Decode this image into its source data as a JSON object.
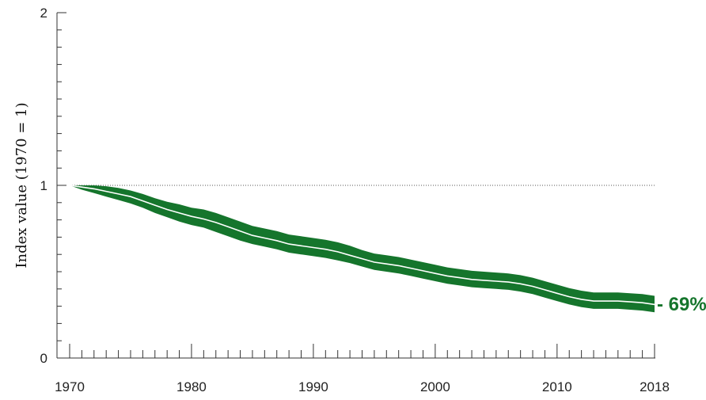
{
  "chart_data": {
    "type": "area",
    "title": "",
    "xlabel": "",
    "ylabel": "Index value (1970 = 1)",
    "xlim": [
      1970,
      2018
    ],
    "ylim": [
      0,
      2
    ],
    "x_tick_labels": [
      "1970",
      "1980",
      "1990",
      "2000",
      "2010",
      "2018"
    ],
    "y_tick_labels": [
      "0",
      "1",
      "2"
    ],
    "reference_line": 1,
    "annotation": "- 69%",
    "colors": {
      "band": "#15752c",
      "line": "#ffffff",
      "reference": "#555555"
    },
    "series": [
      {
        "x": [
          1970,
          1971,
          1972,
          1973,
          1974,
          1975,
          1976,
          1977,
          1978,
          1979,
          1980,
          1981,
          1982,
          1983,
          1984,
          1985,
          1986,
          1987,
          1988,
          1989,
          1990,
          1991,
          1992,
          1993,
          1994,
          1995,
          1996,
          1997,
          1998,
          1999,
          2000,
          2001,
          2002,
          2003,
          2004,
          2005,
          2006,
          2007,
          2008,
          2009,
          2010,
          2011,
          2012,
          2013,
          2014,
          2015,
          2016,
          2017,
          2018
        ],
        "values": [
          1.0,
          0.99,
          0.98,
          0.965,
          0.95,
          0.935,
          0.91,
          0.885,
          0.86,
          0.84,
          0.82,
          0.805,
          0.785,
          0.76,
          0.735,
          0.71,
          0.695,
          0.68,
          0.66,
          0.65,
          0.64,
          0.63,
          0.615,
          0.595,
          0.575,
          0.555,
          0.545,
          0.535,
          0.52,
          0.505,
          0.49,
          0.475,
          0.465,
          0.455,
          0.45,
          0.445,
          0.44,
          0.43,
          0.415,
          0.395,
          0.375,
          0.355,
          0.34,
          0.33,
          0.33,
          0.33,
          0.325,
          0.32,
          0.31
        ],
        "lower": [
          1.0,
          0.975,
          0.955,
          0.935,
          0.915,
          0.895,
          0.87,
          0.84,
          0.815,
          0.79,
          0.77,
          0.755,
          0.73,
          0.705,
          0.68,
          0.66,
          0.645,
          0.63,
          0.61,
          0.6,
          0.59,
          0.58,
          0.565,
          0.55,
          0.53,
          0.51,
          0.5,
          0.49,
          0.475,
          0.46,
          0.445,
          0.43,
          0.42,
          0.41,
          0.405,
          0.4,
          0.395,
          0.385,
          0.37,
          0.35,
          0.33,
          0.31,
          0.295,
          0.285,
          0.285,
          0.285,
          0.28,
          0.275,
          0.265
        ],
        "upper": [
          1.0,
          1.0,
          1.0,
          0.995,
          0.985,
          0.97,
          0.95,
          0.925,
          0.905,
          0.89,
          0.87,
          0.86,
          0.84,
          0.815,
          0.79,
          0.765,
          0.75,
          0.735,
          0.715,
          0.705,
          0.695,
          0.685,
          0.67,
          0.65,
          0.625,
          0.605,
          0.595,
          0.585,
          0.57,
          0.555,
          0.54,
          0.525,
          0.515,
          0.505,
          0.5,
          0.495,
          0.49,
          0.48,
          0.465,
          0.445,
          0.425,
          0.405,
          0.39,
          0.38,
          0.38,
          0.38,
          0.375,
          0.37,
          0.36
        ]
      }
    ]
  }
}
